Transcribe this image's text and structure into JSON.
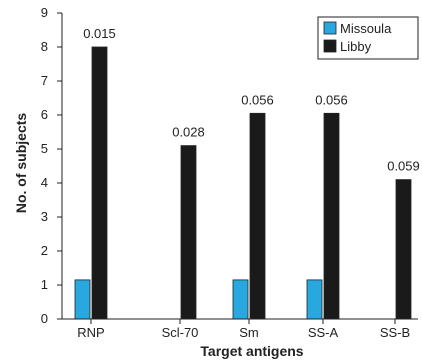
{
  "chart_data": {
    "type": "bar",
    "xlabel": "Target antigens",
    "ylabel": "No. of subjects",
    "ylim": [
      0,
      9
    ],
    "yticks": [
      0,
      1,
      2,
      3,
      4,
      5,
      6,
      7,
      8,
      9
    ],
    "grid": false,
    "legend_position": "top-right",
    "categories": [
      "RNP",
      "Scl-70",
      "Sm",
      "SS-A",
      "SS-B"
    ],
    "series": [
      {
        "name": "Missoula",
        "color": "#29a8e0",
        "values": [
          1.15,
          0,
          1.15,
          1.15,
          0
        ]
      },
      {
        "name": "Libby",
        "color": "#1a1a1a",
        "values": [
          8,
          5.1,
          6.05,
          6.05,
          4.1
        ]
      }
    ],
    "annotations": [
      "0.015",
      "0.028",
      "0.056",
      "0.056",
      "0.059"
    ]
  }
}
